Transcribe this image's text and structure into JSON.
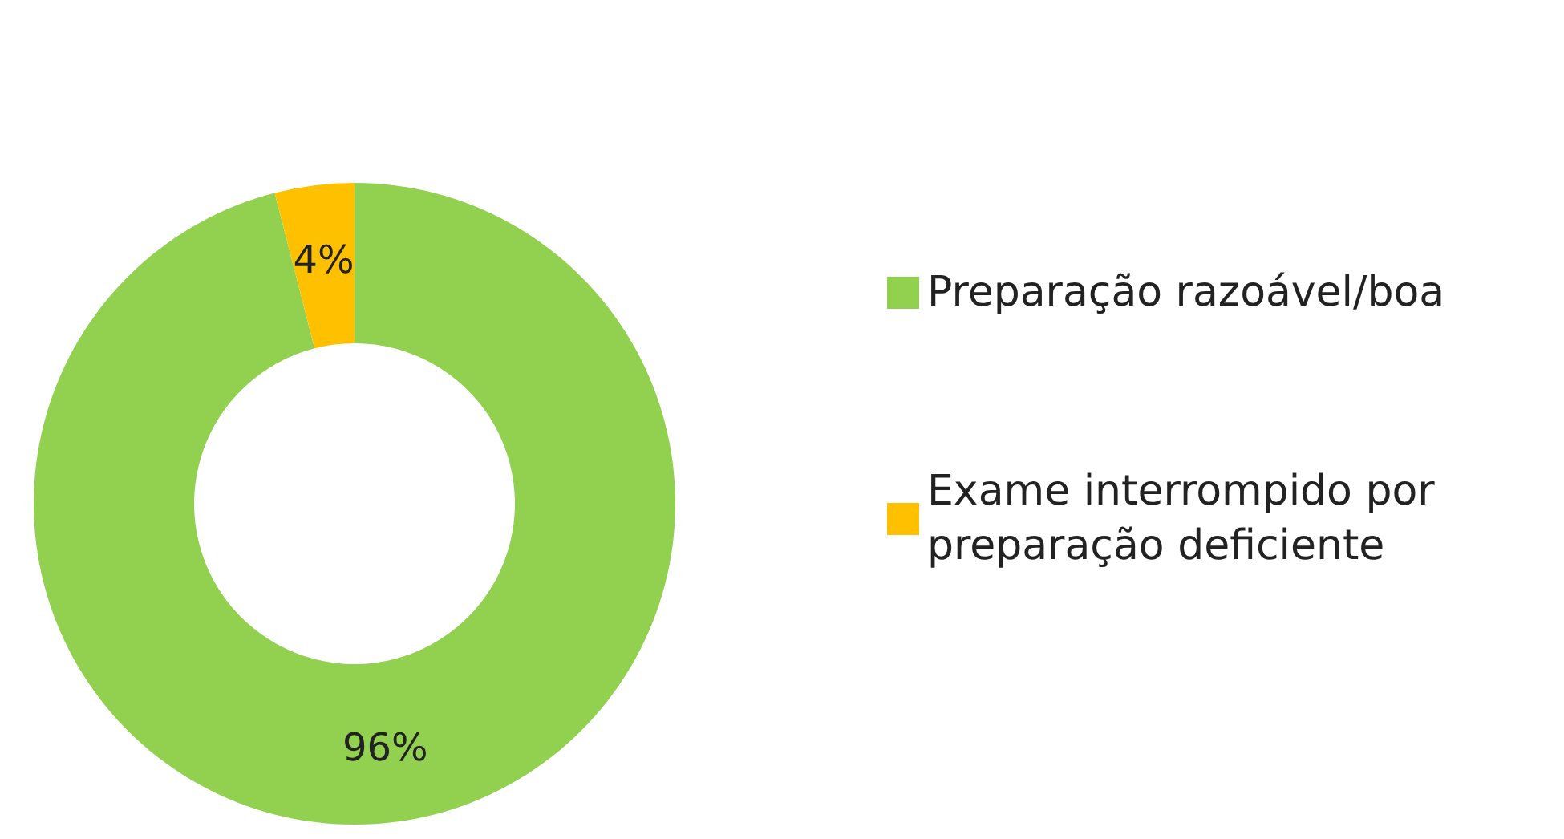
{
  "chart_data": {
    "type": "donut",
    "categories": [
      "Preparação razoável/boa",
      "Exame interrompido por preparação deficiente"
    ],
    "values": [
      96,
      4
    ],
    "colors": [
      "#92d050",
      "#ffc000"
    ],
    "value_labels": [
      "96%",
      "4%"
    ],
    "legend": "right"
  }
}
